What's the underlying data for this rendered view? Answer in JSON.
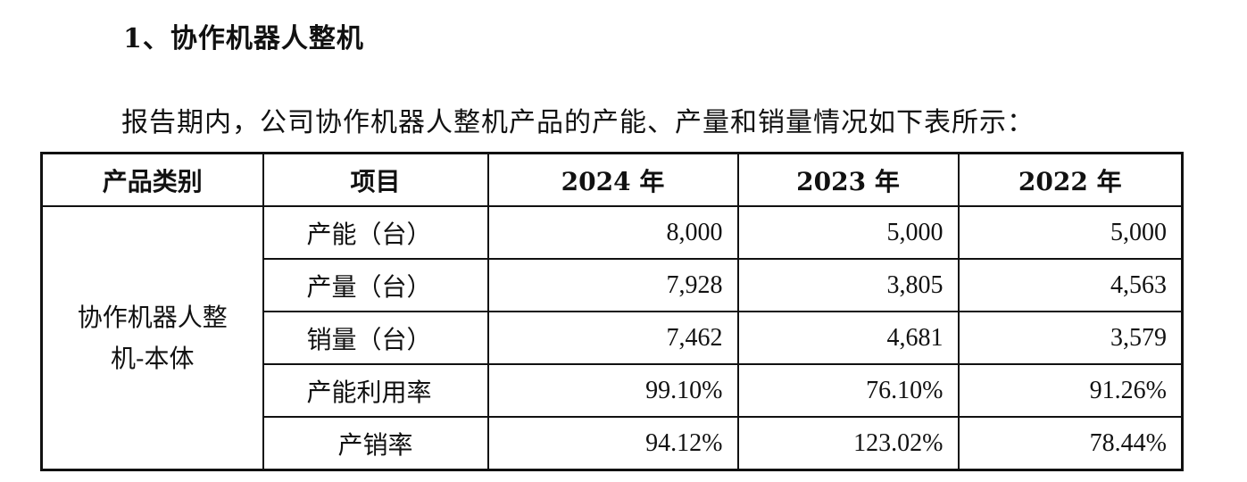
{
  "section": {
    "heading": "1、协作机器人整机",
    "intro": "报告期内，公司协作机器人整机产品的产能、产量和销量情况如下表所示："
  },
  "table": {
    "headers": [
      "产品类别",
      "项目",
      "2024 年",
      "2023 年",
      "2022 年"
    ],
    "category_lines": [
      "协作机器人整",
      "机-本体"
    ],
    "rows": [
      {
        "item": "产能（台）",
        "v2024": "8,000",
        "v2023": "5,000",
        "v2022": "5,000"
      },
      {
        "item": "产量（台）",
        "v2024": "7,928",
        "v2023": "3,805",
        "v2022": "4,563"
      },
      {
        "item": "销量（台）",
        "v2024": "7,462",
        "v2023": "4,681",
        "v2022": "3,579"
      },
      {
        "item": "产能利用率",
        "v2024": "99.10%",
        "v2023": "76.10%",
        "v2022": "91.26%"
      },
      {
        "item": "产销率",
        "v2024": "94.12%",
        "v2023": "123.02%",
        "v2022": "78.44%"
      }
    ]
  }
}
